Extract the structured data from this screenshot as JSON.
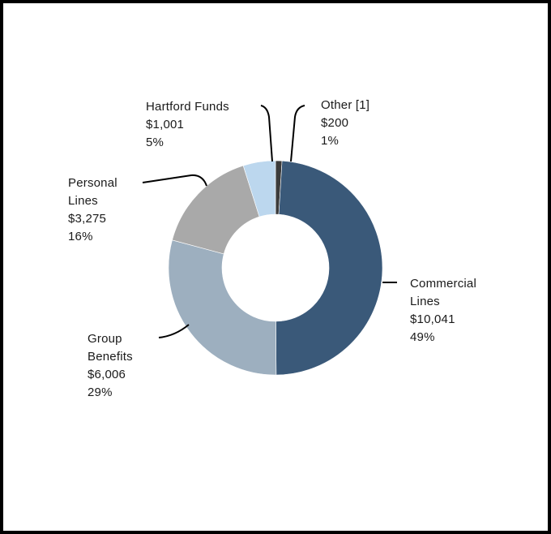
{
  "chart_data": {
    "type": "pie",
    "donut": true,
    "title": "",
    "slices": [
      {
        "lines": [
          "Commercial",
          "Lines"
        ],
        "value_label": "$10,041",
        "pct_label": "49%",
        "value": 10041,
        "color": "#3a5979"
      },
      {
        "lines": [
          "Group",
          "Benefits"
        ],
        "value_label": "$6,006",
        "pct_label": "29%",
        "value": 6006,
        "color": "#9dafbf"
      },
      {
        "lines": [
          "Personal",
          "Lines"
        ],
        "value_label": "$3,275",
        "pct_label": "16%",
        "value": 3275,
        "color": "#a9a9a9"
      },
      {
        "lines": [
          "Hartford Funds"
        ],
        "value_label": "$1,001",
        "pct_label": "5%",
        "value": 1001,
        "color": "#bcd7ee"
      },
      {
        "lines": [
          "Other [1]"
        ],
        "value_label": "$200",
        "pct_label": "1%",
        "value": 200,
        "color": "#3b3b3b"
      }
    ]
  }
}
